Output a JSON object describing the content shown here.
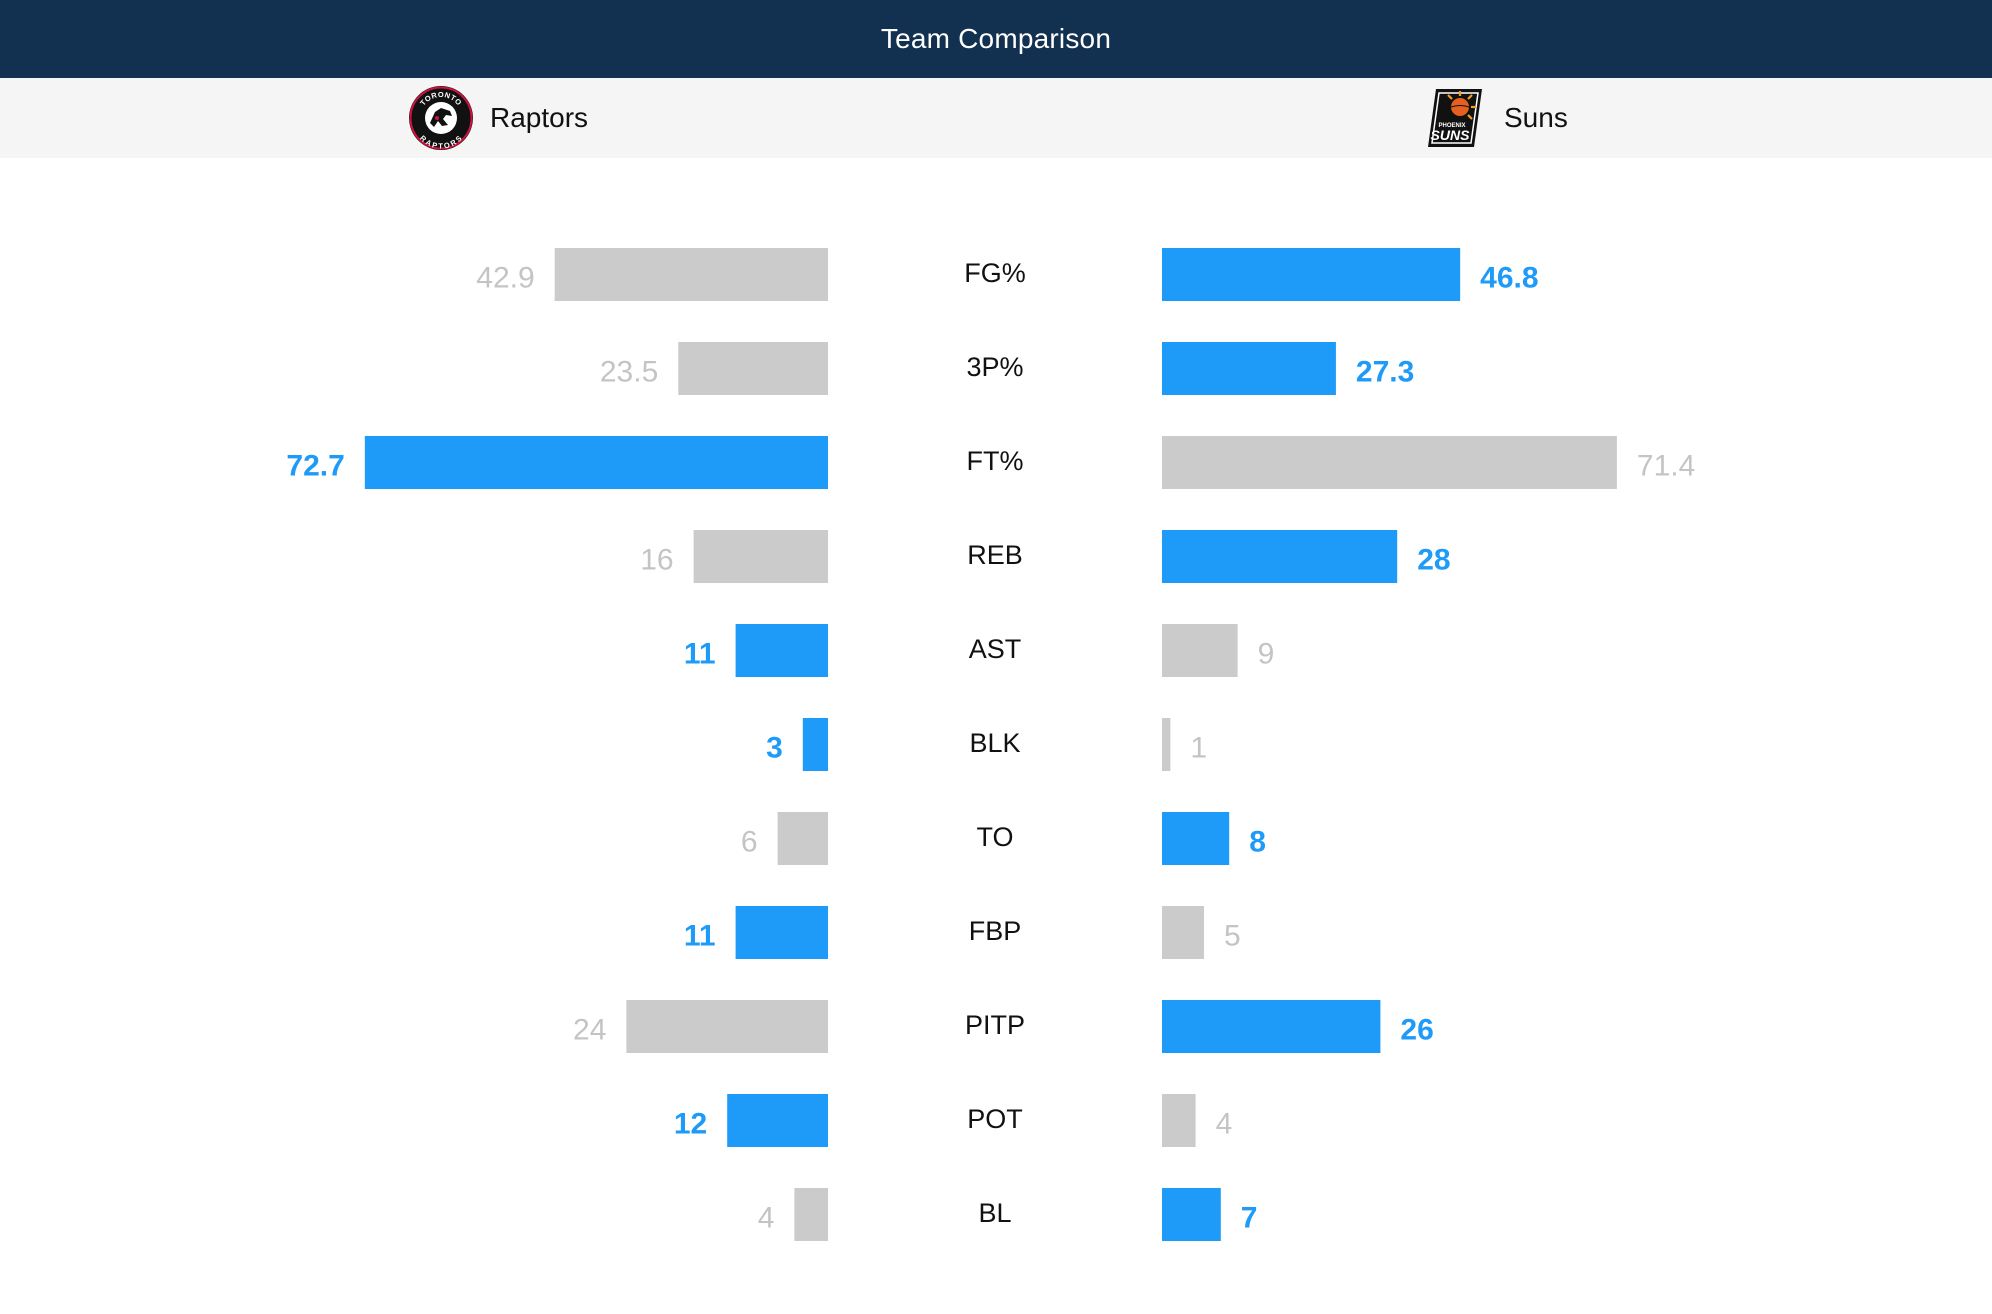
{
  "header": {
    "title": "Team Comparison"
  },
  "teams": {
    "home": {
      "name": "Raptors",
      "logo_text_top": "TORONTO",
      "logo_text_bottom": "RAPTORS"
    },
    "away": {
      "name": "Suns",
      "logo_text_small": "PHOENIX",
      "logo_text_big": "SUNS"
    }
  },
  "colors": {
    "header_bg": "#12304f",
    "highlight": "#1e9bf8",
    "muted_bar": "#cbcbcb",
    "muted_text": "#c4c4c4",
    "label_text": "#111111"
  },
  "chart_data": {
    "type": "bar",
    "orientation": "horizontal-diverging",
    "title": "Team Comparison",
    "series": [
      {
        "name": "Raptors",
        "side": "left"
      },
      {
        "name": "Suns",
        "side": "right"
      }
    ],
    "categories": [
      "FG%",
      "3P%",
      "FT%",
      "REB",
      "AST",
      "BLK",
      "TO",
      "FBP",
      "PITP",
      "POT",
      "BL"
    ],
    "rows": [
      {
        "stat": "FG%",
        "home": 42.9,
        "away": 46.8,
        "home_display": "42.9",
        "away_display": "46.8",
        "leader": "away",
        "scale_max": 85.7
      },
      {
        "stat": "3P%",
        "home": 23.5,
        "away": 27.3,
        "home_display": "23.5",
        "away_display": "27.3",
        "leader": "away",
        "scale_max": 85.7
      },
      {
        "stat": "FT%",
        "home": 72.7,
        "away": 71.4,
        "home_display": "72.7",
        "away_display": "71.4",
        "leader": "home",
        "scale_max": 85.7
      },
      {
        "stat": "REB",
        "home": 16,
        "away": 28,
        "home_display": "16",
        "away_display": "28",
        "leader": "away",
        "scale_max": 65
      },
      {
        "stat": "AST",
        "home": 11,
        "away": 9,
        "home_display": "11",
        "away_display": "9",
        "leader": "home",
        "scale_max": 65
      },
      {
        "stat": "BLK",
        "home": 3,
        "away": 1,
        "home_display": "3",
        "away_display": "1",
        "leader": "home",
        "scale_max": 65
      },
      {
        "stat": "TO",
        "home": 6,
        "away": 8,
        "home_display": "6",
        "away_display": "8",
        "leader": "away",
        "scale_max": 65
      },
      {
        "stat": "FBP",
        "home": 11,
        "away": 5,
        "home_display": "11",
        "away_display": "5",
        "leader": "home",
        "scale_max": 65
      },
      {
        "stat": "PITP",
        "home": 24,
        "away": 26,
        "home_display": "24",
        "away_display": "26",
        "leader": "away",
        "scale_max": 65
      },
      {
        "stat": "POT",
        "home": 12,
        "away": 4,
        "home_display": "12",
        "away_display": "4",
        "leader": "home",
        "scale_max": 65
      },
      {
        "stat": "BL",
        "home": 4,
        "away": 7,
        "home_display": "4",
        "away_display": "7",
        "leader": "away",
        "scale_max": 65
      }
    ]
  }
}
